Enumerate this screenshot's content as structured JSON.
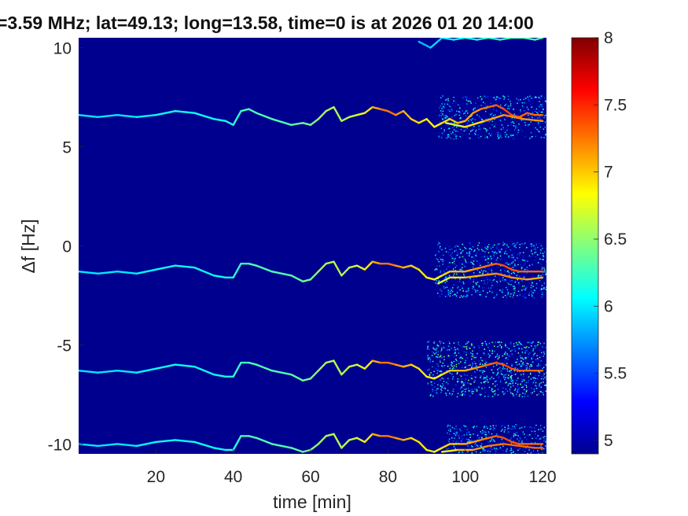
{
  "chart_data": {
    "type": "heatmap",
    "title": "=3.59 MHz;  lat=49.13; long=13.58, time=0 is at 2026 01 20 14:00",
    "xlabel": "time [min]",
    "ylabel": "Δf [Hz]",
    "xlim": [
      0,
      121
    ],
    "ylim": [
      -10.5,
      10.5
    ],
    "x_ticks": [
      20,
      40,
      60,
      80,
      100,
      120
    ],
    "y_ticks": [
      10,
      5,
      0,
      -5,
      -10
    ],
    "colorbar": {
      "colormap": "jet",
      "range": [
        4.9,
        8
      ],
      "ticks": [
        8,
        7.5,
        7,
        6.5,
        6,
        5.5,
        5
      ]
    },
    "background_value": 4.95,
    "series": [
      {
        "x": [
          0,
          5,
          10,
          15,
          20,
          25,
          30,
          35,
          38,
          40,
          42,
          44,
          46,
          50,
          55,
          58,
          60,
          62,
          64,
          66,
          68,
          70,
          72,
          74,
          76,
          78,
          80,
          82,
          84,
          86,
          88,
          90,
          92,
          94,
          96,
          98,
          100,
          102,
          104,
          106,
          108,
          110,
          112,
          114,
          116,
          118,
          120
        ],
        "y": [
          6.6,
          6.5,
          6.6,
          6.5,
          6.6,
          6.8,
          6.7,
          6.4,
          6.3,
          6.1,
          6.8,
          6.9,
          6.7,
          6.4,
          6.1,
          6.2,
          6.1,
          6.4,
          6.8,
          7.0,
          6.3,
          6.5,
          6.6,
          6.7,
          7.0,
          6.9,
          6.8,
          6.6,
          6.8,
          6.4,
          6.2,
          6.4,
          6.0,
          6.2,
          6.4,
          6.2,
          6.3,
          6.7,
          6.9,
          7.0,
          7.1,
          6.9,
          6.6,
          6.5,
          6.7,
          6.6,
          6.6
        ],
        "intensity": [
          6.0,
          6.0,
          6.0,
          6.0,
          6.1,
          6.1,
          6.1,
          6.1,
          6.1,
          6.2,
          6.2,
          6.3,
          6.3,
          6.3,
          6.3,
          6.4,
          6.4,
          6.5,
          6.6,
          6.6,
          6.6,
          6.6,
          6.7,
          6.8,
          7.0,
          7.2,
          7.3,
          7.2,
          7.1,
          7.0,
          6.9,
          6.9,
          6.8,
          6.9,
          7.0,
          7.0,
          7.1,
          7.1,
          7.2,
          7.3,
          7.3,
          7.4,
          7.4,
          7.3,
          7.3,
          7.3,
          7.3
        ]
      },
      {
        "x": [
          0,
          5,
          10,
          15,
          20,
          25,
          30,
          35,
          38,
          40,
          42,
          44,
          46,
          50,
          55,
          58,
          60,
          62,
          64,
          66,
          68,
          70,
          72,
          74,
          76,
          78,
          80,
          82,
          84,
          86,
          88,
          90,
          92,
          94,
          96,
          98,
          100,
          102,
          104,
          106,
          108,
          110,
          112,
          114,
          116,
          118,
          120
        ],
        "y": [
          -1.3,
          -1.4,
          -1.3,
          -1.4,
          -1.2,
          -1.0,
          -1.1,
          -1.5,
          -1.6,
          -1.6,
          -0.9,
          -0.9,
          -1.0,
          -1.3,
          -1.5,
          -1.8,
          -1.7,
          -1.3,
          -0.9,
          -0.8,
          -1.5,
          -1.1,
          -1.0,
          -1.2,
          -0.8,
          -0.9,
          -0.9,
          -1.0,
          -1.1,
          -1.0,
          -1.2,
          -1.6,
          -1.7,
          -1.5,
          -1.3,
          -1.3,
          -1.3,
          -1.2,
          -1.1,
          -1.0,
          -0.9,
          -1.0,
          -1.2,
          -1.3,
          -1.3,
          -1.3,
          -1.3
        ],
        "intensity": [
          6.0,
          6.0,
          6.0,
          6.0,
          6.1,
          6.1,
          6.1,
          6.1,
          6.1,
          6.2,
          6.2,
          6.3,
          6.3,
          6.3,
          6.3,
          6.4,
          6.4,
          6.5,
          6.6,
          6.6,
          6.6,
          6.6,
          6.7,
          6.8,
          7.0,
          7.2,
          7.3,
          7.2,
          7.1,
          7.0,
          6.9,
          6.9,
          6.8,
          6.9,
          7.0,
          7.0,
          7.1,
          7.1,
          7.2,
          7.3,
          7.3,
          7.4,
          7.4,
          7.3,
          7.3,
          7.3,
          7.3
        ]
      },
      {
        "x": [
          0,
          5,
          10,
          15,
          20,
          25,
          30,
          35,
          38,
          40,
          42,
          44,
          46,
          50,
          55,
          58,
          60,
          62,
          64,
          66,
          68,
          70,
          72,
          74,
          76,
          78,
          80,
          82,
          84,
          86,
          88,
          90,
          92,
          94,
          96,
          98,
          100,
          102,
          104,
          106,
          108,
          110,
          112,
          114,
          116,
          118,
          120
        ],
        "y": [
          -6.3,
          -6.4,
          -6.3,
          -6.4,
          -6.2,
          -6.0,
          -6.1,
          -6.5,
          -6.6,
          -6.6,
          -5.9,
          -5.9,
          -6.0,
          -6.3,
          -6.5,
          -6.8,
          -6.7,
          -6.3,
          -5.9,
          -5.8,
          -6.5,
          -6.1,
          -6.0,
          -6.2,
          -5.8,
          -5.9,
          -5.9,
          -6.0,
          -6.1,
          -6.0,
          -6.2,
          -6.6,
          -6.7,
          -6.5,
          -6.3,
          -6.3,
          -6.3,
          -6.2,
          -6.1,
          -6.0,
          -5.9,
          -6.0,
          -6.2,
          -6.3,
          -6.3,
          -6.3,
          -6.3
        ],
        "intensity": [
          6.0,
          6.0,
          6.0,
          6.0,
          6.1,
          6.1,
          6.1,
          6.1,
          6.1,
          6.2,
          6.2,
          6.3,
          6.3,
          6.3,
          6.3,
          6.4,
          6.4,
          6.5,
          6.6,
          6.6,
          6.6,
          6.6,
          6.7,
          6.8,
          7.0,
          7.2,
          7.3,
          7.2,
          7.1,
          7.0,
          6.9,
          6.9,
          6.8,
          6.9,
          7.0,
          7.0,
          7.1,
          7.1,
          7.2,
          7.3,
          7.3,
          7.4,
          7.4,
          7.3,
          7.3,
          7.3,
          7.3
        ]
      },
      {
        "x": [
          0,
          5,
          10,
          15,
          20,
          25,
          30,
          35,
          38,
          40,
          42,
          44,
          46,
          50,
          55,
          58,
          60,
          62,
          64,
          66,
          68,
          70,
          72,
          74,
          76,
          78,
          80,
          82,
          84,
          86,
          88,
          90,
          92,
          94,
          96,
          98,
          100,
          102,
          104,
          106,
          108,
          110,
          112,
          114,
          116,
          118,
          120
        ],
        "y": [
          -10.0,
          -10.1,
          -10.0,
          -10.1,
          -9.9,
          -9.8,
          -9.9,
          -10.2,
          -10.3,
          -10.3,
          -9.6,
          -9.6,
          -9.7,
          -10.0,
          -10.2,
          -10.4,
          -10.3,
          -10.0,
          -9.6,
          -9.5,
          -10.2,
          -9.8,
          -9.7,
          -9.9,
          -9.5,
          -9.6,
          -9.6,
          -9.7,
          -9.8,
          -9.7,
          -9.9,
          -10.3,
          -10.4,
          -10.2,
          -10.0,
          -10.0,
          -10.0,
          -9.9,
          -9.8,
          -9.7,
          -9.6,
          -9.7,
          -9.9,
          -10.0,
          -10.0,
          -10.0,
          -10.0
        ],
        "intensity": [
          6.0,
          6.0,
          6.0,
          6.0,
          6.1,
          6.1,
          6.1,
          6.1,
          6.1,
          6.2,
          6.2,
          6.3,
          6.3,
          6.3,
          6.3,
          6.4,
          6.4,
          6.5,
          6.6,
          6.6,
          6.6,
          6.6,
          6.7,
          6.8,
          7.0,
          7.2,
          7.3,
          7.2,
          7.1,
          7.0,
          6.9,
          6.9,
          6.8,
          6.9,
          7.0,
          7.0,
          7.1,
          7.1,
          7.2,
          7.3,
          7.3,
          7.4,
          7.4,
          7.3,
          7.3,
          7.3,
          7.3
        ]
      },
      {
        "x": [
          95,
          100,
          105,
          110,
          115,
          120
        ],
        "y": [
          6.2,
          6.0,
          6.3,
          6.6,
          6.4,
          6.3
        ],
        "intensity": [
          6.6,
          6.8,
          7.0,
          7.2,
          7.2,
          7.1
        ]
      },
      {
        "x": [
          93,
          96,
          100,
          104,
          108,
          112,
          116,
          120
        ],
        "y": [
          -1.9,
          -1.6,
          -1.6,
          -1.5,
          -1.4,
          -1.6,
          -1.7,
          -1.6
        ],
        "intensity": [
          6.6,
          6.8,
          7.0,
          7.1,
          7.2,
          7.2,
          7.1,
          7.1
        ]
      },
      {
        "x": [
          94,
          98,
          102,
          106,
          110,
          114,
          118,
          120
        ],
        "y": [
          -10.4,
          -10.3,
          -10.3,
          -10.1,
          -10.0,
          -10.1,
          -10.2,
          -10.2
        ],
        "intensity": [
          6.8,
          7.0,
          7.1,
          7.2,
          7.3,
          7.3,
          7.3,
          7.3
        ]
      },
      {
        "x": [
          88,
          91,
          94,
          97,
          100,
          103,
          106,
          109,
          112,
          115,
          118,
          120
        ],
        "y": [
          10.3,
          10.0,
          10.5,
          10.4,
          10.5,
          10.4,
          10.5,
          10.4,
          10.5,
          10.5,
          10.4,
          10.5
        ],
        "intensity": [
          5.8,
          5.9,
          6.0,
          6.1,
          6.1,
          6.2,
          6.2,
          6.2,
          6.3,
          6.3,
          6.3,
          6.3
        ]
      }
    ],
    "noise_regions": [
      {
        "x": [
          90,
          121
        ],
        "y": [
          -7.6,
          -4.8
        ],
        "level": 6.1
      },
      {
        "x": [
          92,
          121
        ],
        "y": [
          -2.6,
          0.2
        ],
        "level": 5.9
      },
      {
        "x": [
          93,
          121
        ],
        "y": [
          5.4,
          7.6
        ],
        "level": 5.8
      },
      {
        "x": [
          95,
          121
        ],
        "y": [
          -10.5,
          -9.0
        ],
        "level": 5.9
      }
    ]
  }
}
